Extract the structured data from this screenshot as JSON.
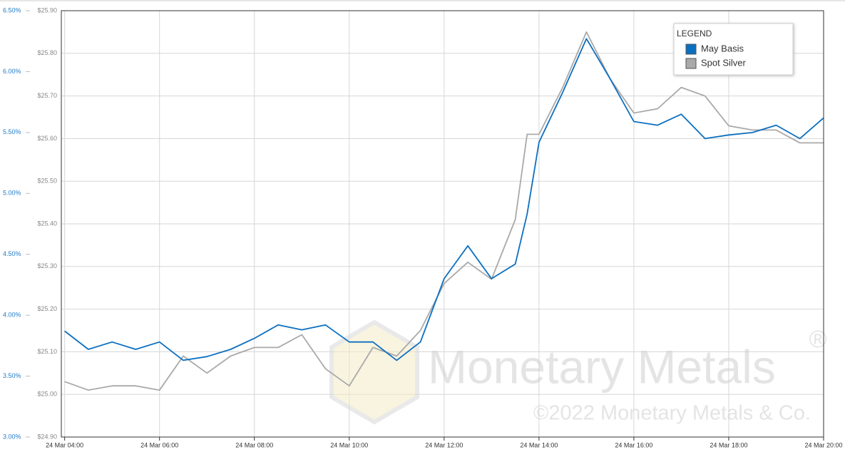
{
  "chart_data": {
    "type": "line",
    "legend_title": "LEGEND",
    "legend_position": "upper right",
    "grid": true,
    "watermark": "Monetary Metals",
    "watermark_mark": "®",
    "watermark_copyright": "©2022 Monetary Metals & Co.",
    "x": [
      4,
      4.5,
      5,
      5.5,
      6,
      6.5,
      7,
      7.5,
      8,
      8.5,
      9,
      9.5,
      10,
      10.5,
      11,
      11.5,
      12,
      12.5,
      13,
      13.5,
      13.75,
      14,
      14.5,
      15,
      15.5,
      16,
      16.5,
      17,
      17.5,
      18,
      18.5,
      19,
      19.5,
      20
    ],
    "xlim": [
      3.93,
      20.0
    ],
    "xticks": [
      {
        "value": 4,
        "label": "24 Mar 04:00"
      },
      {
        "value": 6,
        "label": "24 Mar 06:00"
      },
      {
        "value": 8,
        "label": "24 Mar 08:00"
      },
      {
        "value": 10,
        "label": "24 Mar 10:00"
      },
      {
        "value": 12,
        "label": "24 Mar 12:00"
      },
      {
        "value": 14,
        "label": "24 Mar 14:00"
      },
      {
        "value": 16,
        "label": "24 Mar 16:00"
      },
      {
        "value": 18,
        "label": "24 Mar 18:00"
      },
      {
        "value": 20,
        "label": "24 Mar 20:00"
      }
    ],
    "ylim": [
      24.9,
      25.9
    ],
    "yticks": [
      {
        "value": 24.9,
        "label": "$24.90"
      },
      {
        "value": 25.0,
        "label": "$25.00"
      },
      {
        "value": 25.1,
        "label": "$25.10"
      },
      {
        "value": 25.2,
        "label": "$25.20"
      },
      {
        "value": 25.3,
        "label": "$25.30"
      },
      {
        "value": 25.4,
        "label": "$25.40"
      },
      {
        "value": 25.5,
        "label": "$25.50"
      },
      {
        "value": 25.6,
        "label": "$25.60"
      },
      {
        "value": 25.7,
        "label": "$25.70"
      },
      {
        "value": 25.8,
        "label": "$25.80"
      },
      {
        "value": 25.9,
        "label": "$25.90"
      }
    ],
    "y2lim": [
      3.0,
      6.5
    ],
    "y2ticks": [
      {
        "value": 3.0,
        "label": "3.00%"
      },
      {
        "value": 3.5,
        "label": "3.50%"
      },
      {
        "value": 4.0,
        "label": "4.00%"
      },
      {
        "value": 4.5,
        "label": "4.50%"
      },
      {
        "value": 5.0,
        "label": "5.00%"
      },
      {
        "value": 5.5,
        "label": "5.50%"
      },
      {
        "value": 6.0,
        "label": "6.00%"
      },
      {
        "value": 6.5,
        "label": "6.50%"
      }
    ],
    "series": [
      {
        "name": "May Basis",
        "color": "#0b6fc0",
        "axis": "y2",
        "values": [
          3.87,
          3.72,
          3.78,
          3.72,
          3.78,
          3.63,
          3.66,
          3.72,
          3.81,
          3.92,
          3.88,
          3.92,
          3.78,
          3.78,
          3.63,
          3.78,
          4.3,
          4.57,
          4.3,
          4.42,
          4.83,
          5.42,
          5.83,
          6.27,
          5.94,
          5.59,
          5.56,
          5.65,
          5.45,
          5.48,
          5.5,
          5.56,
          5.45,
          5.62
        ]
      },
      {
        "name": "Spot Silver",
        "color": "#a9a9a9",
        "values": [
          25.03,
          25.01,
          25.02,
          25.02,
          25.01,
          25.09,
          25.05,
          25.09,
          25.11,
          25.11,
          25.14,
          25.06,
          25.02,
          25.11,
          25.09,
          25.15,
          25.26,
          25.31,
          25.27,
          25.41,
          25.61,
          25.61,
          25.72,
          25.85,
          25.74,
          25.66,
          25.67,
          25.72,
          25.7,
          25.63,
          25.62,
          25.62,
          25.59,
          25.59
        ]
      }
    ]
  }
}
